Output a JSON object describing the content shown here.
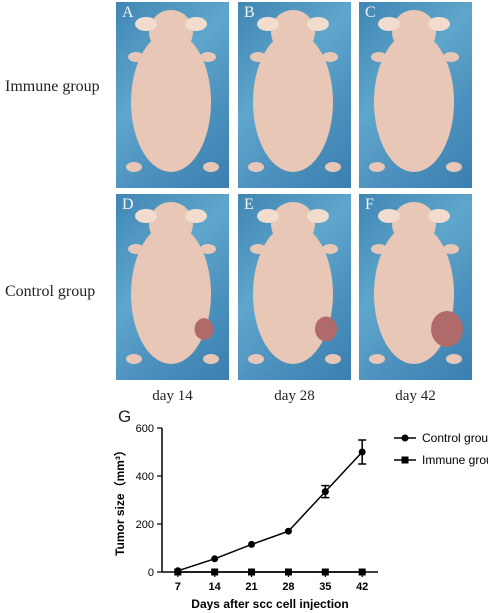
{
  "row_labels": {
    "immune": "Immune  group",
    "control": "Control  group"
  },
  "panels": [
    {
      "letter": "A",
      "group": "immune",
      "tumor": 0
    },
    {
      "letter": "B",
      "group": "immune",
      "tumor": 0
    },
    {
      "letter": "C",
      "group": "immune",
      "tumor": 0
    },
    {
      "letter": "D",
      "group": "control",
      "tumor": 0.35
    },
    {
      "letter": "E",
      "group": "control",
      "tumor": 0.5
    },
    {
      "letter": "F",
      "group": "control",
      "tumor": 1
    }
  ],
  "day_labels": [
    "day 14",
    "day 28",
    "day 42"
  ],
  "panel_g": "G",
  "colors": {
    "background_blue": "#4a8fbe",
    "skin": "#e9c7b6",
    "tumor": "#b06a6a",
    "line": "#000000"
  },
  "chart_data": {
    "type": "line",
    "xlabel": "Days after scc cell injection",
    "ylabel": "Tumor size（mm³）",
    "x": [
      7,
      14,
      21,
      28,
      35,
      42
    ],
    "xlim": [
      4,
      45
    ],
    "ylim": [
      0,
      600
    ],
    "yticks": [
      0,
      200,
      400,
      600
    ],
    "legend": "top-right",
    "series": [
      {
        "name": "Control group",
        "marker": "circle",
        "values": [
          5,
          55,
          115,
          170,
          335,
          500
        ],
        "errors": [
          0,
          0,
          0,
          0,
          25,
          50
        ]
      },
      {
        "name": "Immune group",
        "marker": "square",
        "values": [
          0,
          0,
          0,
          0,
          0,
          0
        ],
        "errors": [
          0,
          0,
          0,
          0,
          0,
          0
        ]
      }
    ]
  }
}
